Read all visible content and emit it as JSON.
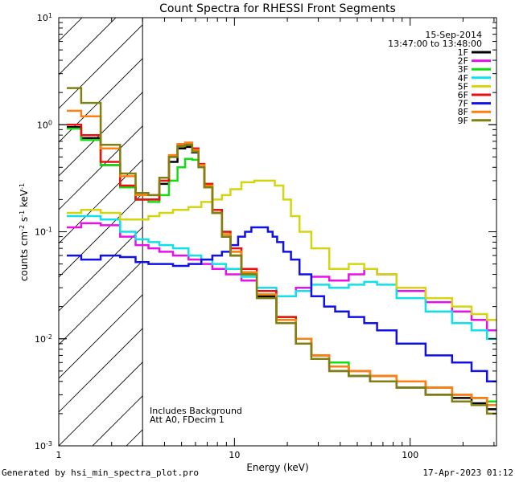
{
  "chart_data": {
    "type": "line",
    "title": "Count Spectra for RHESSI Front Segments",
    "date": "15-Sep-2014",
    "time_range": "13:47:00 to 13:48:00",
    "xlabel": "Energy (keV)",
    "ylabel": "counts cm⁻² s⁻¹ keV⁻¹",
    "x_scale": "log",
    "y_scale": "log",
    "xlim": [
      1,
      310
    ],
    "ylim": [
      0.001,
      10
    ],
    "x_tick_labels": [
      {
        "v": 1,
        "label": "1"
      },
      {
        "v": 10,
        "label": "10"
      },
      {
        "v": 100,
        "label": "100"
      }
    ],
    "y_tick_labels": [
      {
        "v": 0.001,
        "b": "10",
        "e": "-3"
      },
      {
        "v": 0.01,
        "b": "10",
        "e": "-2"
      },
      {
        "v": 0.1,
        "b": "10",
        "e": "-1"
      },
      {
        "v": 1,
        "b": "10",
        "e": "0"
      },
      {
        "v": 10,
        "b": "10",
        "e": "1"
      }
    ],
    "grid": false,
    "legend_position": "top-right",
    "shaded_region": {
      "x": [
        1,
        3
      ],
      "pattern": "diagonal-hatch"
    },
    "annotations": [
      "Includes Background",
      "Att A0, FDecim 1"
    ],
    "series": [
      {
        "name": "1F",
        "color": "#000000",
        "x": [
          1.2,
          1.5,
          2,
          2.5,
          3,
          3.5,
          4,
          4.5,
          5,
          5.5,
          6,
          6.5,
          7,
          8,
          9,
          10,
          12,
          15,
          20,
          25,
          30,
          40,
          50,
          70,
          100,
          150,
          200,
          250,
          300
        ],
        "y": [
          0.95,
          0.75,
          0.42,
          0.26,
          0.2,
          0.2,
          0.28,
          0.45,
          0.6,
          0.62,
          0.55,
          0.4,
          0.26,
          0.15,
          0.09,
          0.06,
          0.04,
          0.025,
          0.015,
          0.009,
          0.007,
          0.005,
          0.0045,
          0.004,
          0.0035,
          0.003,
          0.0028,
          0.0025,
          0.0022
        ]
      },
      {
        "name": "2F",
        "color": "#e810e8",
        "x": [
          1.2,
          1.5,
          2,
          2.5,
          3,
          3.5,
          4,
          5,
          6,
          7,
          8,
          10,
          12,
          15,
          20,
          25,
          30,
          40,
          50,
          60,
          70,
          100,
          150,
          200,
          250,
          300
        ],
        "y": [
          0.11,
          0.12,
          0.115,
          0.09,
          0.075,
          0.07,
          0.065,
          0.06,
          0.055,
          0.05,
          0.045,
          0.04,
          0.035,
          0.028,
          0.025,
          0.03,
          0.038,
          0.035,
          0.04,
          0.045,
          0.04,
          0.028,
          0.022,
          0.018,
          0.015,
          0.012
        ]
      },
      {
        "name": "3F",
        "color": "#10e010",
        "x": [
          1.2,
          1.5,
          2,
          2.5,
          3,
          3.5,
          4,
          4.5,
          5,
          5.5,
          6,
          6.5,
          7,
          8,
          9,
          10,
          12,
          15,
          20,
          25,
          30,
          40,
          50,
          70,
          100,
          150,
          200,
          250,
          300
        ],
        "y": [
          0.92,
          0.72,
          0.42,
          0.26,
          0.2,
          0.19,
          0.22,
          0.3,
          0.4,
          0.48,
          0.47,
          0.4,
          0.28,
          0.16,
          0.1,
          0.065,
          0.04,
          0.026,
          0.016,
          0.01,
          0.007,
          0.006,
          0.005,
          0.0045,
          0.004,
          0.0035,
          0.003,
          0.0028,
          0.0026
        ]
      },
      {
        "name": "4F",
        "color": "#10e0e8",
        "x": [
          1.2,
          1.5,
          2,
          2.5,
          3,
          3.5,
          4,
          5,
          6,
          7,
          8,
          10,
          12,
          15,
          20,
          25,
          30,
          40,
          50,
          60,
          70,
          100,
          150,
          200,
          250,
          300
        ],
        "y": [
          0.14,
          0.14,
          0.13,
          0.1,
          0.085,
          0.08,
          0.075,
          0.07,
          0.06,
          0.055,
          0.05,
          0.045,
          0.038,
          0.03,
          0.025,
          0.028,
          0.032,
          0.03,
          0.032,
          0.034,
          0.032,
          0.024,
          0.018,
          0.014,
          0.012,
          0.01
        ]
      },
      {
        "name": "5F",
        "color": "#d4d410",
        "x": [
          1.2,
          1.5,
          2,
          2.5,
          3,
          3.5,
          4,
          5,
          6,
          7,
          8,
          9,
          10,
          12,
          14,
          16,
          18,
          20,
          22,
          25,
          30,
          40,
          50,
          60,
          70,
          100,
          150,
          200,
          250,
          300
        ],
        "y": [
          0.15,
          0.16,
          0.15,
          0.13,
          0.13,
          0.14,
          0.15,
          0.16,
          0.17,
          0.19,
          0.2,
          0.22,
          0.25,
          0.29,
          0.3,
          0.3,
          0.27,
          0.2,
          0.14,
          0.1,
          0.07,
          0.045,
          0.05,
          0.045,
          0.04,
          0.03,
          0.024,
          0.02,
          0.017,
          0.015
        ]
      },
      {
        "name": "6F",
        "color": "#e81010",
        "x": [
          1.2,
          1.5,
          2,
          2.5,
          3,
          3.5,
          4,
          4.5,
          5,
          5.5,
          6,
          6.5,
          7,
          8,
          9,
          10,
          12,
          15,
          20,
          25,
          30,
          40,
          50,
          70,
          100,
          150,
          200,
          250,
          300
        ],
        "y": [
          1.0,
          0.8,
          0.45,
          0.27,
          0.2,
          0.2,
          0.3,
          0.5,
          0.65,
          0.68,
          0.6,
          0.43,
          0.28,
          0.16,
          0.1,
          0.07,
          0.045,
          0.028,
          0.016,
          0.01,
          0.007,
          0.0055,
          0.005,
          0.0045,
          0.004,
          0.0035,
          0.003,
          0.0028,
          0.0024
        ]
      },
      {
        "name": "7F",
        "color": "#1010e8",
        "x": [
          1.2,
          1.5,
          2,
          2.5,
          3,
          3.5,
          4,
          5,
          6,
          7,
          8,
          9,
          10,
          11,
          12,
          13,
          14,
          15,
          16,
          17,
          18,
          20,
          22,
          25,
          30,
          35,
          40,
          50,
          60,
          70,
          100,
          150,
          200,
          250,
          300
        ],
        "y": [
          0.06,
          0.055,
          0.06,
          0.058,
          0.052,
          0.05,
          0.05,
          0.048,
          0.05,
          0.055,
          0.06,
          0.065,
          0.075,
          0.09,
          0.1,
          0.11,
          0.11,
          0.11,
          0.1,
          0.09,
          0.08,
          0.065,
          0.055,
          0.04,
          0.025,
          0.02,
          0.018,
          0.016,
          0.014,
          0.012,
          0.009,
          0.007,
          0.006,
          0.005,
          0.004
        ]
      },
      {
        "name": "8F",
        "color": "#ff8010",
        "x": [
          1.2,
          1.5,
          2,
          2.5,
          3,
          3.5,
          4,
          4.5,
          5,
          5.5,
          6,
          6.5,
          7,
          8,
          9,
          10,
          12,
          15,
          20,
          25,
          30,
          40,
          50,
          70,
          100,
          150,
          200,
          250,
          300
        ],
        "y": [
          1.35,
          1.2,
          0.6,
          0.33,
          0.22,
          0.22,
          0.32,
          0.52,
          0.66,
          0.68,
          0.58,
          0.42,
          0.27,
          0.15,
          0.095,
          0.065,
          0.042,
          0.026,
          0.015,
          0.01,
          0.007,
          0.0055,
          0.005,
          0.0045,
          0.004,
          0.0035,
          0.003,
          0.0028,
          0.0024
        ]
      },
      {
        "name": "9F",
        "color": "#808010",
        "x": [
          1.2,
          1.5,
          2,
          2.5,
          3,
          3.5,
          4,
          4.5,
          5,
          5.5,
          6,
          6.5,
          7,
          8,
          9,
          10,
          12,
          15,
          20,
          25,
          30,
          40,
          50,
          70,
          100,
          150,
          200,
          250,
          300
        ],
        "y": [
          2.2,
          1.6,
          0.65,
          0.35,
          0.23,
          0.22,
          0.32,
          0.5,
          0.63,
          0.65,
          0.56,
          0.4,
          0.26,
          0.15,
          0.09,
          0.06,
          0.04,
          0.024,
          0.014,
          0.009,
          0.0065,
          0.005,
          0.0045,
          0.004,
          0.0035,
          0.003,
          0.0026,
          0.0024,
          0.002
        ]
      }
    ]
  },
  "footer": {
    "left": "Generated by hsi_min_spectra_plot.pro",
    "right": "17-Apr-2023 01:12"
  }
}
